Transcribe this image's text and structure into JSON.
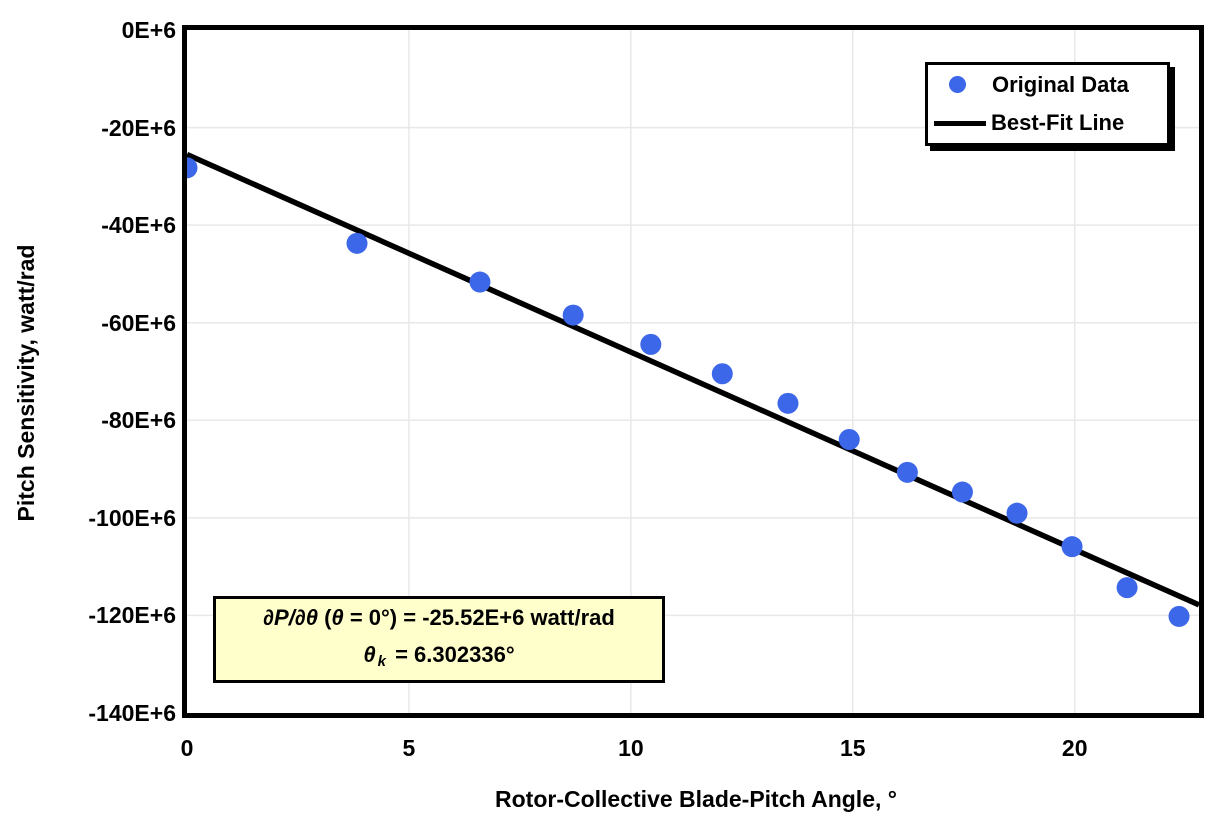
{
  "figure": {
    "background": "#FFFFFF",
    "frame_color": "#000000"
  },
  "chart_data": {
    "type": "scatter",
    "title": "",
    "xlabel": "Rotor-Collective Blade-Pitch Angle, °",
    "ylabel": "Pitch Sensitivity, watt/rad",
    "x_units": "degrees",
    "y_units": "E+6 watt/rad",
    "xlim": [
      0,
      22.8
    ],
    "ylim_e6": [
      0,
      -140
    ],
    "x_ticks": [
      0,
      5,
      10,
      15,
      20
    ],
    "x_tick_labels": [
      "0",
      "5",
      "10",
      "15",
      "20"
    ],
    "y_ticks_e6": [
      0,
      -20,
      -40,
      -60,
      -80,
      -100,
      -120,
      -140
    ],
    "y_tick_labels": [
      "0E+6",
      "-20E+6",
      "-40E+6",
      "-60E+6",
      "-80E+6",
      "-100E+6",
      "-120E+6",
      "-140E+6"
    ],
    "grid": true,
    "grid_color": "#E8E8E8",
    "legend_position": "top-right",
    "series": [
      {
        "name": "Original Data",
        "type": "scatter",
        "marker": "circle",
        "color": "#3B67E8",
        "points": [
          [
            0.0,
            -28.24
          ],
          [
            3.83,
            -43.73
          ],
          [
            6.6,
            -51.66
          ],
          [
            8.7,
            -58.44
          ],
          [
            10.45,
            -64.44
          ],
          [
            12.06,
            -70.46
          ],
          [
            13.54,
            -76.53
          ],
          [
            14.92,
            -83.94
          ],
          [
            16.23,
            -90.67
          ],
          [
            17.47,
            -94.71
          ],
          [
            18.7,
            -99.04
          ],
          [
            19.94,
            -105.9
          ],
          [
            21.18,
            -114.3
          ],
          [
            22.35,
            -120.2
          ]
        ]
      },
      {
        "name": "Best-Fit Line",
        "type": "line",
        "color": "#000000",
        "fit": {
          "intercept_e6": -25.52,
          "slope_e6_per_deg": -4.0493,
          "x_start": 0,
          "x_end": 22.8
        }
      }
    ]
  },
  "annotation": {
    "background": "#FFFFCC",
    "line1_text": "∂P/∂θ (θ=0°) = -25.52E+6 watt/rad",
    "line2_text": "θk = 6.302336°",
    "line1_parts": [
      {
        "text": "∂P/∂θ",
        "style": "italic"
      },
      {
        "text": " (",
        "style": "normal"
      },
      {
        "text": "θ",
        "style": "italic"
      },
      {
        "text": " = 0°) = -25.52E+6 watt/rad",
        "style": "normal"
      }
    ],
    "line2_parts": [
      {
        "text": "θ",
        "style": "italic"
      },
      {
        "text": "k",
        "style": "sub"
      },
      {
        "text": " = 6.302336°",
        "style": "normal"
      }
    ]
  }
}
